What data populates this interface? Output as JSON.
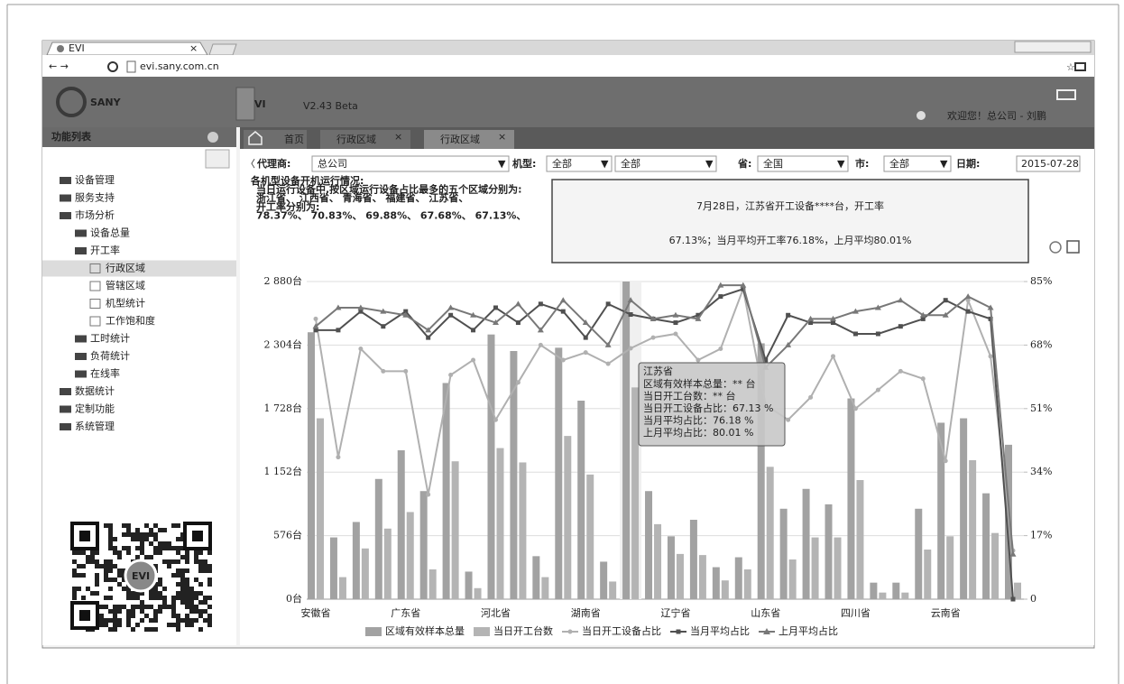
{
  "browser": {
    "tab": "EVI",
    "tab_close": "×",
    "url": "evi.sany.com.cn"
  },
  "header": {
    "brand": "SANY",
    "product": "VI",
    "version": "V2.43 Beta",
    "user": "欢迎您！总公司 - 刘鹏"
  },
  "sidebar": {
    "title": "功能列表",
    "items": [
      "设备管理",
      "服务支持",
      "市场分析",
      "设备总量",
      "开工率",
      "行政区域",
      "管辖区域",
      "机型统计",
      "工作饱和度",
      "工时统计",
      "负荷统计",
      "在线率",
      "数据统计",
      "定制功能",
      "系统管理"
    ],
    "qr_label": "EVI"
  },
  "tabs": {
    "items": [
      "首页",
      "行政区域",
      "行政区域"
    ],
    "close": "×"
  },
  "filters": {
    "agent_label": "代理商:",
    "agent": "总公司",
    "model_label": "机型:",
    "model": "全部",
    "model2": "全部",
    "province_label": "省:",
    "province": "全国",
    "city_label": "市:",
    "city": "全部",
    "date_label": "日期:",
    "date": "2015-07-28"
  },
  "summary": [
    "各机型设备开机运行情况:",
    "当日运行设备中,按区域运行设备占比最多的五个区域分别为:",
    "浙江省、   江西省、   青海省、   福建省、   江苏省、",
    "开工率分别为:",
    "78.37%、   70.83%、   69.88%、   67.68%、   67.13%、"
  ],
  "callout": [
    "7月28日，江苏省开工设备****台，开工率",
    "67.13%；当月平均开工率76.18%，上月平均80.01%"
  ],
  "tooltip": {
    "title": "江苏省",
    "lines": [
      "区域有效样本总量：** 台",
      "当日开工台数：** 台",
      "当日开工设备占比：67.13 %",
      "当月平均占比：76.18 %",
      "上月平均占比：80.01 %"
    ]
  },
  "chart_data": {
    "type": "bar",
    "categories": [
      "安徽省",
      null,
      null,
      null,
      "广东省",
      null,
      null,
      null,
      "河北省",
      null,
      null,
      null,
      "湖南省",
      null,
      null,
      null,
      "辽宁省",
      null,
      null,
      null,
      "山东省",
      null,
      null,
      null,
      "四川省",
      null,
      null,
      null,
      "云南省",
      null,
      null,
      null
    ],
    "series": [
      {
        "name": "区域有效样本总量",
        "type": "bar",
        "color": "#a2a2a2",
        "values": [
          2420,
          560,
          700,
          1090,
          1350,
          980,
          1960,
          250,
          2400,
          2250,
          390,
          2280,
          1800,
          340,
          2880,
          980,
          570,
          720,
          290,
          380,
          2320,
          820,
          1000,
          860,
          1820,
          150,
          150,
          820,
          1600,
          1640,
          960,
          1400
        ]
      },
      {
        "name": "当日开工台数",
        "type": "bar",
        "color": "#b4b4b4",
        "values": [
          1640,
          200,
          460,
          640,
          790,
          270,
          1250,
          100,
          1370,
          1240,
          200,
          1480,
          1130,
          160,
          1920,
          680,
          410,
          400,
          170,
          270,
          1200,
          360,
          560,
          560,
          1080,
          60,
          60,
          450,
          570,
          1260,
          600,
          150
        ]
      },
      {
        "name": "当日开工设备占比",
        "type": "line",
        "marker": "circle",
        "axis": "y2",
        "color": "#b0b0b0",
        "values": [
          75,
          38,
          67,
          61,
          61,
          28,
          60,
          64,
          48,
          58,
          68,
          64,
          66,
          63,
          67.13,
          70,
          71,
          64,
          67,
          83,
          52,
          48,
          54,
          65,
          51,
          56,
          61,
          59,
          37,
          80,
          65,
          13
        ]
      },
      {
        "name": "当月平均占比",
        "type": "line",
        "marker": "square",
        "axis": "y2",
        "color": "#505050",
        "values": [
          72,
          72,
          77,
          73,
          77,
          70,
          76,
          72,
          78,
          74,
          79,
          77,
          70,
          79,
          76.18,
          75,
          74,
          76,
          81,
          83,
          64,
          76,
          74,
          74,
          71,
          71,
          73,
          75,
          80,
          77,
          75,
          0
        ]
      },
      {
        "name": "上月平均占比",
        "type": "line",
        "marker": "triangle",
        "axis": "y2",
        "color": "#787878",
        "values": [
          73,
          78,
          78,
          77,
          76,
          72,
          78,
          76,
          74,
          79,
          72,
          80,
          74,
          68,
          80.01,
          75,
          76,
          75,
          84,
          84,
          62,
          68,
          75,
          75,
          77,
          78,
          80,
          76,
          76,
          81,
          78,
          12
        ]
      }
    ],
    "ylim": [
      0,
      2880
    ],
    "yticks": [
      {
        "value": 0,
        "label": "0台"
      },
      {
        "value": 576,
        "label": "576台"
      },
      {
        "value": 1152,
        "label": "1 152台"
      },
      {
        "value": 1728,
        "label": "1 728台"
      },
      {
        "value": 2304,
        "label": "2 304台"
      },
      {
        "value": 2880,
        "label": "2 880台"
      }
    ],
    "y2lim": [
      0,
      85
    ],
    "y2ticks": [
      0,
      {
        "value": 17,
        "label": "17%"
      },
      {
        "value": 34,
        "label": "34%"
      },
      {
        "value": 51,
        "label": "51%"
      },
      {
        "value": 68,
        "label": "68%"
      },
      {
        "value": 85,
        "label": "85%"
      }
    ],
    "grid": true,
    "legend": "bottom"
  }
}
